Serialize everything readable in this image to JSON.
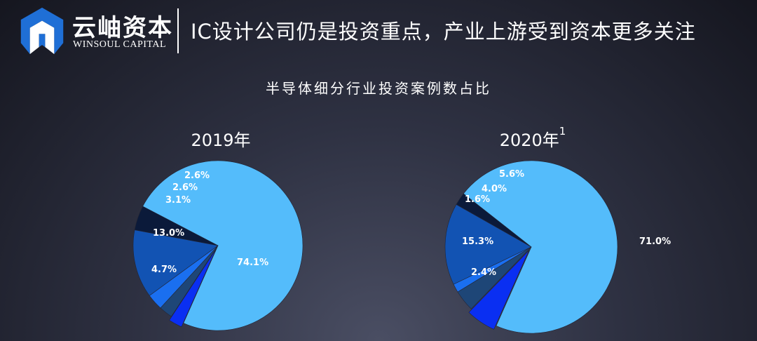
{
  "header": {
    "logo_cn": "云岫资本",
    "logo_en": "WINSOUL CAPITAL",
    "logo_icon": "winsoul-logo-icon",
    "title": "IC设计公司仍是投资重点，产业上游受到资本更多关注"
  },
  "colors": {
    "background": "#2e3142",
    "light_blue": "#54bcfb",
    "navy": "#0b1a3a",
    "mid_blue": "#1253b3",
    "bright_blue": "#1a6ff0",
    "slate_blue": "#1e4677",
    "vivid_blue": "#0a2ff2"
  },
  "chart_data": [
    {
      "type": "pie",
      "title": "2019年",
      "title_sup": "",
      "slices": [
        {
          "value": 74.1,
          "label": "74.1%",
          "color": "#54bcfb"
        },
        {
          "value": 4.7,
          "label": "4.7%",
          "color": "#0b1a3a"
        },
        {
          "value": 13.0,
          "label": "13.0%",
          "color": "#1253b3"
        },
        {
          "value": 3.1,
          "label": "3.1%",
          "color": "#1a6ff0"
        },
        {
          "value": 2.6,
          "label": "2.6%",
          "color": "#1e4677"
        },
        {
          "value": 2.6,
          "label": "2.6%",
          "color": "#0a2ff2"
        }
      ]
    },
    {
      "type": "pie",
      "title": "2020年",
      "title_sup": "1",
      "slices": [
        {
          "value": 71.0,
          "label": "71.0%",
          "color": "#54bcfb"
        },
        {
          "value": 2.4,
          "label": "2.4%",
          "color": "#0b1a3a"
        },
        {
          "value": 15.3,
          "label": "15.3%",
          "color": "#1253b3"
        },
        {
          "value": 1.6,
          "label": "1.6%",
          "color": "#1a6ff0"
        },
        {
          "value": 4.0,
          "label": "4.0%",
          "color": "#1e4677"
        },
        {
          "value": 5.6,
          "label": "5.6%",
          "color": "#0a2ff2"
        }
      ]
    }
  ],
  "main_title": "半导体细分行业投资案例数占比"
}
